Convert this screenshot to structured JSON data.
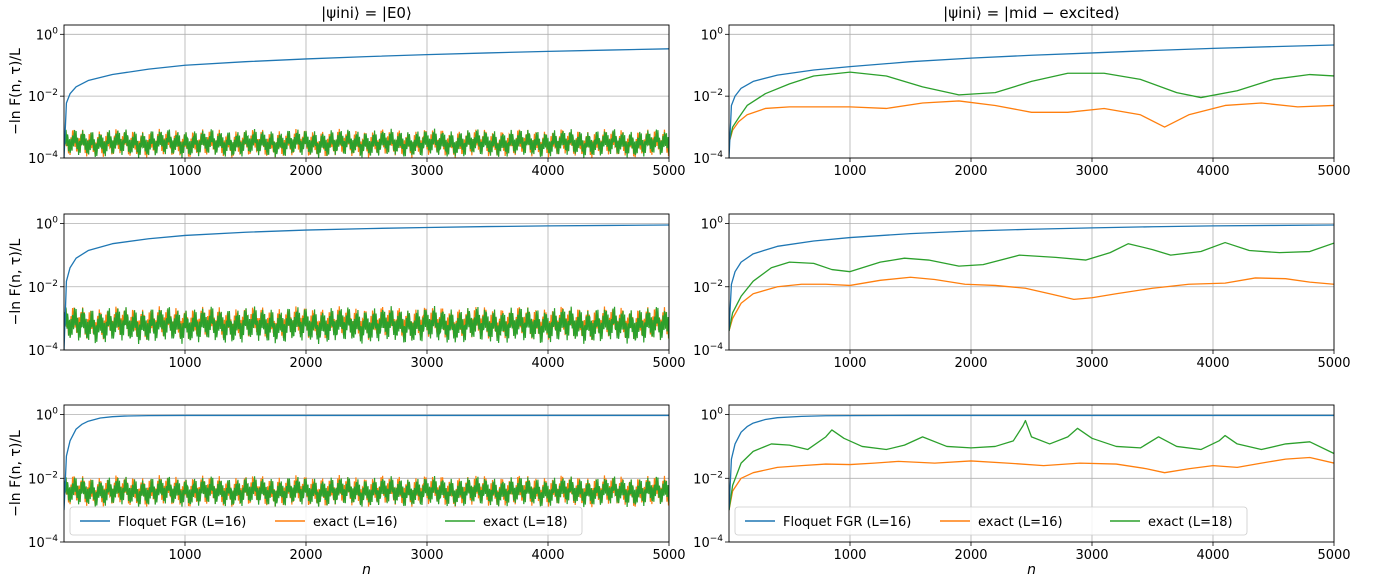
{
  "colors": {
    "floquet": "#1f77b4",
    "exact16": "#ff7f0e",
    "exact18": "#2ca02c",
    "grid": "#b0b0b0"
  },
  "titles": [
    "|ψini⟩ = |E0⟩",
    "|ψini⟩ = |mid − excited⟩"
  ],
  "ylabel": "−ln F(n, τ)/L",
  "xlabel": "n",
  "legend": [
    "Floquet FGR (L=16)",
    "exact (L=16)",
    "exact (L=18)"
  ],
  "chart_data": [
    {
      "type": "line",
      "row": 0,
      "col": 0,
      "title": "|ψini⟩ = |E0⟩",
      "xlabel": "",
      "ylabel": "−ln F(n, τ)/L",
      "xlim": [
        0,
        5000
      ],
      "ylim": [
        0.0001,
        2
      ],
      "yscale": "log",
      "xticks": [
        1000,
        2000,
        3000,
        4000,
        5000
      ],
      "xtick_labels": [
        "1000",
        "2000",
        "3000",
        "4000",
        "5000"
      ],
      "ytick_labels": [
        "10^0",
        "10^-2",
        "10^-4"
      ],
      "grid": true,
      "legend": "",
      "series": [
        {
          "name": "Floquet FGR (L=16)",
          "x": [
            0,
            20,
            50,
            100,
            200,
            400,
            700,
            1000,
            1500,
            2000,
            2500,
            3000,
            3500,
            4000,
            4500,
            5000
          ],
          "y": [
            0.0001,
            0.006,
            0.012,
            0.02,
            0.032,
            0.05,
            0.075,
            0.1,
            0.13,
            0.16,
            0.19,
            0.22,
            0.25,
            0.28,
            0.31,
            0.34
          ]
        },
        {
          "name": "exact (L=16)",
          "x": [
            0,
            5000
          ],
          "y": [
            0.0004,
            0.0004
          ],
          "band": [
            0.0001,
            0.0009
          ],
          "oscillating": true
        },
        {
          "name": "exact (L=18)",
          "x": [
            0,
            5000
          ],
          "y": [
            0.0004,
            0.0004
          ],
          "band": [
            0.0001,
            0.0009
          ],
          "oscillating": true
        }
      ]
    },
    {
      "type": "line",
      "row": 0,
      "col": 1,
      "title": "|ψini⟩ = |mid − excited⟩",
      "xlabel": "",
      "ylabel": "",
      "xlim": [
        0,
        5000
      ],
      "ylim": [
        0.0001,
        2
      ],
      "yscale": "log",
      "xticks": [
        1000,
        2000,
        3000,
        4000,
        5000
      ],
      "xtick_labels": [
        "1000",
        "2000",
        "3000",
        "4000",
        "5000"
      ],
      "ytick_labels": [
        "10^0",
        "10^-2",
        "10^-4"
      ],
      "grid": true,
      "legend": "",
      "series": [
        {
          "name": "Floquet FGR (L=16)",
          "x": [
            0,
            20,
            50,
            100,
            200,
            400,
            700,
            1000,
            1500,
            2000,
            2500,
            3000,
            3500,
            4000,
            4500,
            5000
          ],
          "y": [
            0.0001,
            0.005,
            0.01,
            0.018,
            0.03,
            0.048,
            0.07,
            0.09,
            0.13,
            0.17,
            0.21,
            0.25,
            0.3,
            0.35,
            0.4,
            0.45
          ]
        },
        {
          "name": "exact (L=16)",
          "x": [
            0,
            30,
            80,
            150,
            300,
            500,
            700,
            1000,
            1300,
            1600,
            1900,
            2200,
            2500,
            2800,
            3100,
            3400,
            3600,
            3800,
            4100,
            4400,
            4700,
            5000
          ],
          "y": [
            0.0003,
            0.0008,
            0.0015,
            0.0025,
            0.004,
            0.0045,
            0.0045,
            0.0045,
            0.004,
            0.006,
            0.007,
            0.005,
            0.003,
            0.003,
            0.004,
            0.0025,
            0.001,
            0.0025,
            0.005,
            0.006,
            0.0045,
            0.005
          ]
        },
        {
          "name": "exact (L=18)",
          "x": [
            0,
            30,
            80,
            150,
            300,
            500,
            700,
            1000,
            1300,
            1600,
            1900,
            2200,
            2500,
            2800,
            3100,
            3400,
            3700,
            3900,
            4200,
            4500,
            4800,
            5000
          ],
          "y": [
            0.0003,
            0.001,
            0.002,
            0.005,
            0.012,
            0.025,
            0.045,
            0.06,
            0.045,
            0.02,
            0.011,
            0.013,
            0.03,
            0.055,
            0.055,
            0.035,
            0.013,
            0.009,
            0.015,
            0.035,
            0.05,
            0.045
          ]
        }
      ]
    },
    {
      "type": "line",
      "row": 1,
      "col": 0,
      "title": "",
      "xlabel": "",
      "ylabel": "−ln F(n, τ)/L",
      "xlim": [
        0,
        5000
      ],
      "ylim": [
        0.0001,
        2
      ],
      "yscale": "log",
      "xticks": [
        1000,
        2000,
        3000,
        4000,
        5000
      ],
      "xtick_labels": [
        "1000",
        "2000",
        "3000",
        "4000",
        "5000"
      ],
      "ytick_labels": [
        "10^0",
        "10^-2",
        "10^-4"
      ],
      "grid": true,
      "legend": "",
      "series": [
        {
          "name": "Floquet FGR (L=16)",
          "x": [
            0,
            20,
            50,
            100,
            200,
            400,
            700,
            1000,
            1500,
            2000,
            2500,
            3000,
            3500,
            4000,
            4500,
            5000
          ],
          "y": [
            0.0001,
            0.015,
            0.04,
            0.08,
            0.14,
            0.23,
            0.33,
            0.42,
            0.53,
            0.62,
            0.69,
            0.75,
            0.8,
            0.84,
            0.87,
            0.9
          ]
        },
        {
          "name": "exact (L=16)",
          "x": [
            0,
            5000
          ],
          "y": [
            0.0012,
            0.0012
          ],
          "band": [
            0.0002,
            0.0025
          ],
          "oscillating": true
        },
        {
          "name": "exact (L=18)",
          "x": [
            0,
            5000
          ],
          "y": [
            0.0012,
            0.0012
          ],
          "band": [
            0.00015,
            0.0025
          ],
          "oscillating": true
        }
      ]
    },
    {
      "type": "line",
      "row": 1,
      "col": 1,
      "title": "",
      "xlabel": "",
      "ylabel": "",
      "xlim": [
        0,
        5000
      ],
      "ylim": [
        0.0001,
        2
      ],
      "yscale": "log",
      "xticks": [
        1000,
        2000,
        3000,
        4000,
        5000
      ],
      "xtick_labels": [
        "1000",
        "2000",
        "3000",
        "4000",
        "5000"
      ],
      "ytick_labels": [
        "10^0",
        "10^-2",
        "10^-4"
      ],
      "grid": true,
      "legend": "",
      "series": [
        {
          "name": "Floquet FGR (L=16)",
          "x": [
            0,
            20,
            50,
            100,
            200,
            400,
            700,
            1000,
            1500,
            2000,
            2500,
            3000,
            3500,
            4000,
            4500,
            5000
          ],
          "y": [
            0.0004,
            0.012,
            0.03,
            0.06,
            0.11,
            0.19,
            0.28,
            0.36,
            0.48,
            0.58,
            0.66,
            0.73,
            0.79,
            0.84,
            0.87,
            0.9
          ]
        },
        {
          "name": "exact (L=16)",
          "x": [
            0,
            30,
            100,
            200,
            400,
            600,
            800,
            1000,
            1250,
            1500,
            1700,
            1950,
            2200,
            2450,
            2650,
            2850,
            3000,
            3200,
            3500,
            3800,
            4100,
            4350,
            4600,
            4800,
            5000
          ],
          "y": [
            0.0004,
            0.001,
            0.003,
            0.006,
            0.01,
            0.012,
            0.012,
            0.011,
            0.016,
            0.02,
            0.017,
            0.012,
            0.011,
            0.009,
            0.006,
            0.004,
            0.0045,
            0.006,
            0.009,
            0.012,
            0.013,
            0.019,
            0.018,
            0.014,
            0.012
          ]
        },
        {
          "name": "exact (L=18)",
          "x": [
            0,
            30,
            100,
            200,
            350,
            500,
            700,
            850,
            1000,
            1250,
            1450,
            1650,
            1900,
            2100,
            2400,
            2700,
            2950,
            3150,
            3300,
            3500,
            3650,
            3900,
            4100,
            4300,
            4550,
            4800,
            5000
          ],
          "y": [
            0.0004,
            0.0015,
            0.005,
            0.015,
            0.04,
            0.06,
            0.055,
            0.035,
            0.03,
            0.06,
            0.08,
            0.07,
            0.045,
            0.05,
            0.1,
            0.085,
            0.07,
            0.12,
            0.23,
            0.15,
            0.1,
            0.13,
            0.25,
            0.14,
            0.12,
            0.13,
            0.24
          ]
        }
      ]
    },
    {
      "type": "line",
      "row": 2,
      "col": 0,
      "title": "",
      "xlabel": "n",
      "ylabel": "−ln F(n, τ)/L",
      "xlim": [
        0,
        5000
      ],
      "ylim": [
        0.0001,
        2
      ],
      "yscale": "log",
      "xticks": [
        1000,
        2000,
        3000,
        4000,
        5000
      ],
      "xtick_labels": [
        "1000",
        "2000",
        "3000",
        "4000",
        "5000"
      ],
      "ytick_labels": [
        "10^0",
        "10^-2",
        "10^-4"
      ],
      "grid": true,
      "legend": "lower-left",
      "series": [
        {
          "name": "Floquet FGR (L=16)",
          "x": [
            0,
            20,
            50,
            100,
            150,
            200,
            300,
            400,
            500,
            700,
            1000,
            1500,
            2000,
            3000,
            4000,
            5000
          ],
          "y": [
            0.001,
            0.05,
            0.15,
            0.35,
            0.5,
            0.62,
            0.78,
            0.86,
            0.9,
            0.93,
            0.94,
            0.94,
            0.94,
            0.94,
            0.94,
            0.94
          ]
        },
        {
          "name": "exact (L=16)",
          "x": [
            0,
            5000
          ],
          "y": [
            0.005,
            0.005
          ],
          "band": [
            0.0012,
            0.013
          ],
          "oscillating": true
        },
        {
          "name": "exact (L=18)",
          "x": [
            0,
            5000
          ],
          "y": [
            0.005,
            0.005
          ],
          "band": [
            0.0012,
            0.012
          ],
          "oscillating": true
        }
      ]
    },
    {
      "type": "line",
      "row": 2,
      "col": 1,
      "title": "",
      "xlabel": "n",
      "ylabel": "",
      "xlim": [
        0,
        5000
      ],
      "ylim": [
        0.0001,
        2
      ],
      "yscale": "log",
      "xticks": [
        1000,
        2000,
        3000,
        4000,
        5000
      ],
      "xtick_labels": [
        "1000",
        "2000",
        "3000",
        "4000",
        "5000"
      ],
      "ytick_labels": [
        "10^0",
        "10^-2",
        "10^-4"
      ],
      "grid": true,
      "legend": "lower-left",
      "series": [
        {
          "name": "Floquet FGR (L=16)",
          "x": [
            0,
            20,
            50,
            100,
            150,
            200,
            300,
            400,
            600,
            800,
            1000,
            1500,
            2000,
            3000,
            4000,
            5000
          ],
          "y": [
            0.001,
            0.04,
            0.12,
            0.28,
            0.42,
            0.54,
            0.7,
            0.8,
            0.88,
            0.92,
            0.93,
            0.94,
            0.94,
            0.94,
            0.94,
            0.94
          ]
        },
        {
          "name": "exact (L=16)",
          "x": [
            0,
            30,
            100,
            200,
            400,
            600,
            800,
            1000,
            1200,
            1400,
            1700,
            2000,
            2300,
            2600,
            2900,
            3200,
            3450,
            3600,
            3800,
            4000,
            4200,
            4400,
            4600,
            4800,
            5000
          ],
          "y": [
            0.001,
            0.004,
            0.01,
            0.015,
            0.022,
            0.025,
            0.028,
            0.027,
            0.03,
            0.034,
            0.03,
            0.035,
            0.03,
            0.025,
            0.03,
            0.028,
            0.02,
            0.015,
            0.02,
            0.025,
            0.022,
            0.03,
            0.04,
            0.045,
            0.03
          ]
        },
        {
          "name": "exact (L=18)",
          "x": [
            0,
            30,
            100,
            200,
            350,
            500,
            650,
            800,
            850,
            950,
            1100,
            1300,
            1450,
            1600,
            1800,
            2000,
            2200,
            2350,
            2430,
            2450,
            2500,
            2650,
            2800,
            2880,
            3000,
            3200,
            3400,
            3550,
            3700,
            3900,
            4050,
            4100,
            4200,
            4400,
            4600,
            4800,
            5000
          ],
          "y": [
            0.001,
            0.006,
            0.03,
            0.07,
            0.12,
            0.11,
            0.08,
            0.2,
            0.33,
            0.18,
            0.1,
            0.08,
            0.11,
            0.2,
            0.1,
            0.09,
            0.1,
            0.15,
            0.45,
            0.65,
            0.2,
            0.12,
            0.2,
            0.37,
            0.18,
            0.1,
            0.09,
            0.2,
            0.1,
            0.08,
            0.15,
            0.22,
            0.12,
            0.08,
            0.12,
            0.14,
            0.06
          ]
        }
      ]
    }
  ]
}
